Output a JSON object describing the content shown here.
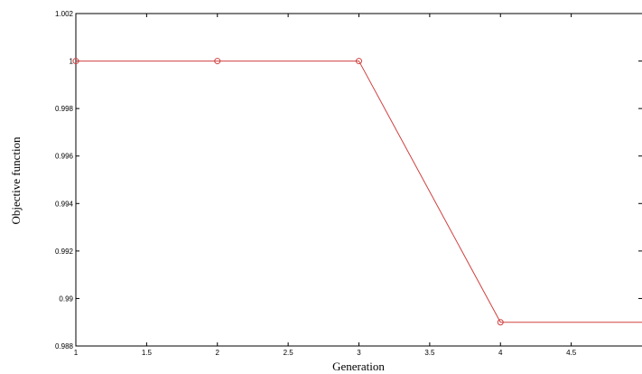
{
  "chart_data": {
    "type": "line",
    "title": "",
    "xlabel": "Generation",
    "ylabel": "Objective function",
    "xlim": [
      1,
      5
    ],
    "ylim": [
      0.988,
      1.002
    ],
    "x_ticks": [
      1,
      1.5,
      2,
      2.5,
      3,
      3.5,
      4,
      4.5
    ],
    "x_tick_labels": [
      "1",
      "1.5",
      "2",
      "2.5",
      "3",
      "3.5",
      "4",
      "4.5"
    ],
    "y_ticks": [
      0.988,
      0.99,
      0.992,
      0.994,
      0.996,
      0.998,
      1,
      1.002
    ],
    "y_tick_labels": [
      "0.988",
      "0.99",
      "0.992",
      "0.994",
      "0.996",
      "0.998",
      "1",
      "1.002"
    ],
    "grid": false,
    "series": [
      {
        "x": [
          1,
          2,
          3,
          4,
          5
        ],
        "y": [
          1,
          1,
          1,
          0.989,
          0.989
        ],
        "color": "#d04040",
        "marker": "circle"
      }
    ]
  }
}
